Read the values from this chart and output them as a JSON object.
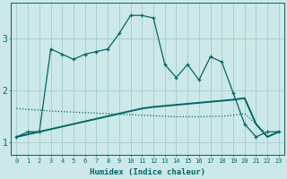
{
  "xlabel": "Humidex (Indice chaleur)",
  "x_values": [
    0,
    1,
    2,
    3,
    4,
    5,
    6,
    7,
    8,
    9,
    10,
    11,
    12,
    13,
    14,
    15,
    16,
    17,
    18,
    19,
    20,
    21,
    22,
    23
  ],
  "line1_y": [
    1.1,
    1.2,
    1.2,
    2.8,
    2.7,
    2.6,
    2.7,
    2.75,
    2.8,
    3.1,
    3.45,
    3.45,
    3.4,
    2.5,
    2.25,
    2.5,
    2.2,
    2.65,
    2.55,
    1.95,
    1.35,
    1.1,
    1.2,
    1.2
  ],
  "line2_y": [
    1.1,
    1.15,
    1.2,
    1.25,
    1.3,
    1.35,
    1.4,
    1.45,
    1.5,
    1.55,
    1.6,
    1.65,
    1.68,
    1.7,
    1.72,
    1.74,
    1.76,
    1.78,
    1.8,
    1.82,
    1.85,
    1.35,
    1.1,
    1.2
  ],
  "line3_y": [
    1.65,
    1.63,
    1.62,
    1.6,
    1.59,
    1.58,
    1.57,
    1.56,
    1.55,
    1.54,
    1.53,
    1.52,
    1.51,
    1.5,
    1.49,
    1.49,
    1.49,
    1.5,
    1.5,
    1.52,
    1.55,
    1.35,
    1.1,
    1.2
  ],
  "bg_color": "#cce8e8",
  "grid_color": "#aacfcf",
  "line_color": "#006666",
  "ylim": [
    0.75,
    3.7
  ],
  "yticks": [
    1,
    2,
    3
  ],
  "xlim": [
    -0.5,
    23.5
  ]
}
